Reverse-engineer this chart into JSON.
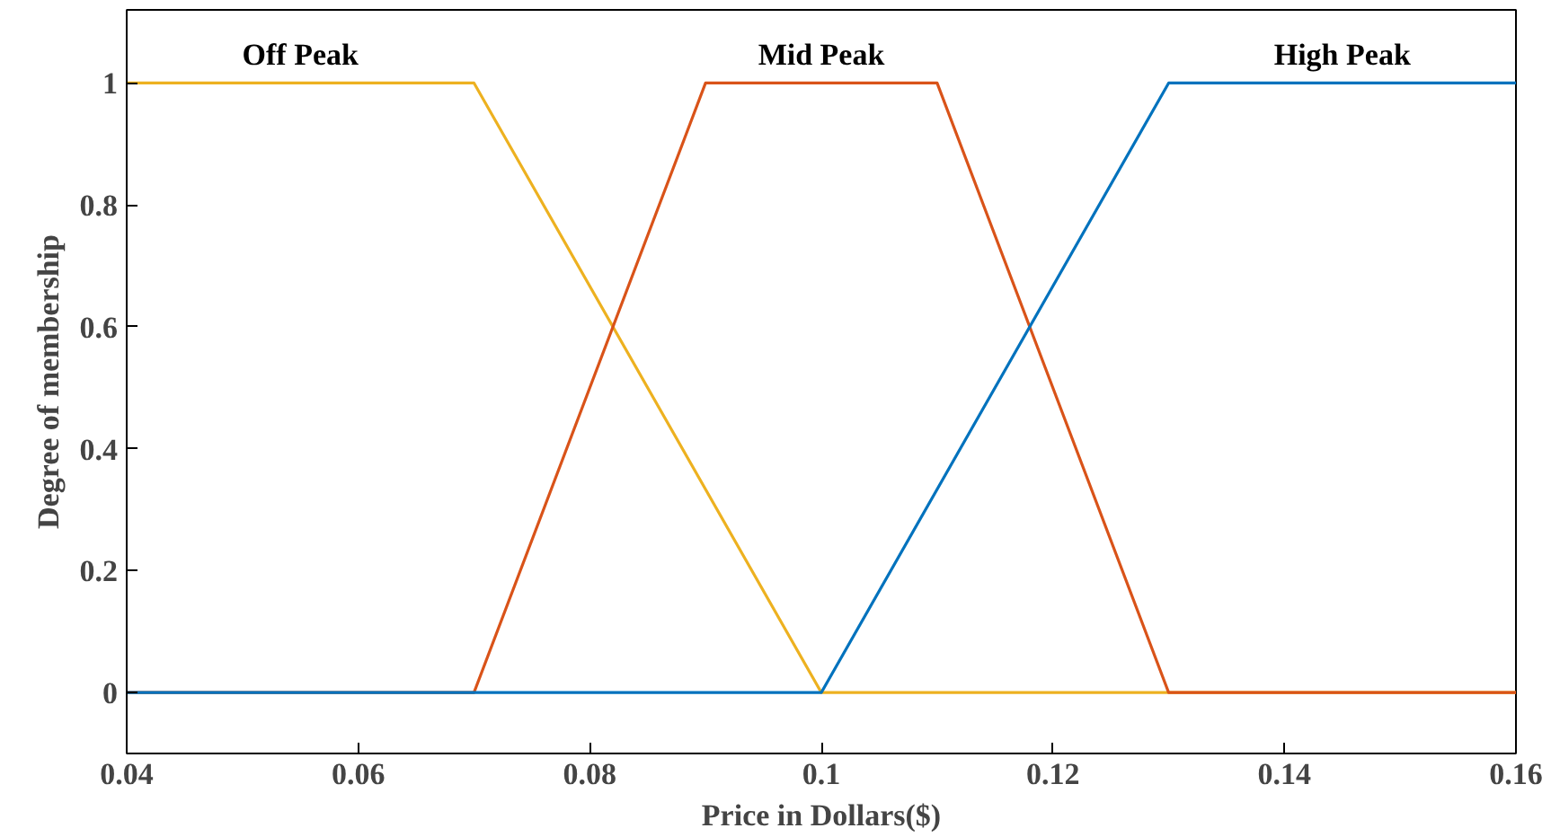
{
  "chart_data": {
    "type": "line",
    "xlabel": "Price in Dollars($)",
    "ylabel": "Degree of membership",
    "xlim": [
      0.04,
      0.16
    ],
    "ylim": [
      -0.1,
      1.12
    ],
    "xticks": [
      0.04,
      0.06,
      0.08,
      0.1,
      0.12,
      0.14,
      0.16
    ],
    "yticks": [
      0,
      0.2,
      0.4,
      0.6,
      0.8,
      1
    ],
    "grid": false,
    "legend": false,
    "marker": "none",
    "line_style": "solid",
    "series": [
      {
        "name": "Off Peak",
        "color": "#edb120",
        "x": [
          0.04,
          0.07,
          0.1,
          0.16
        ],
        "values": [
          1,
          1,
          0,
          0
        ]
      },
      {
        "name": "Mid Peak",
        "color": "#d95319",
        "x": [
          0.04,
          0.07,
          0.09,
          0.11,
          0.13,
          0.16
        ],
        "values": [
          0,
          0,
          1,
          1,
          0,
          0
        ]
      },
      {
        "name": "High Peak",
        "color": "#0072bd",
        "x": [
          0.04,
          0.07,
          0.1,
          0.13,
          0.16
        ],
        "values": [
          0,
          0,
          0,
          1,
          1
        ]
      }
    ]
  }
}
